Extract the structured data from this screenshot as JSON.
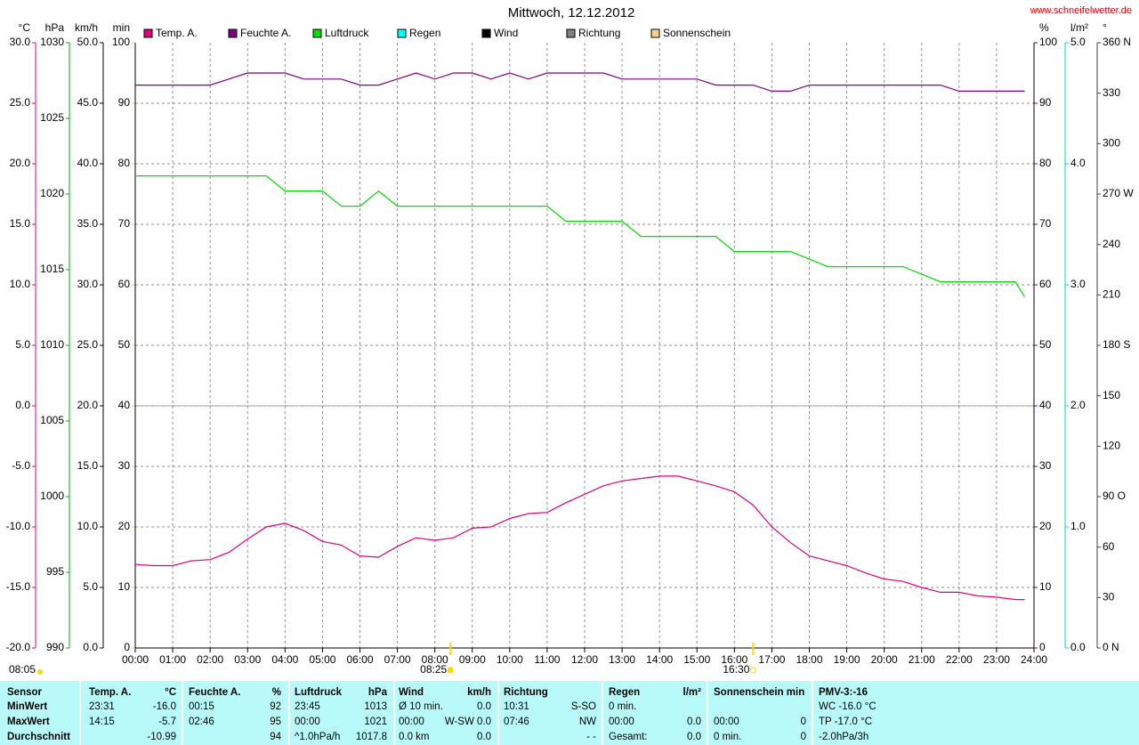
{
  "chart_data": {
    "type": "line",
    "title": "Mittwoch, 12.12.2012",
    "source": "www.schneifelwetter.de",
    "x": [
      0,
      0.5,
      1,
      1.5,
      2,
      2.5,
      3,
      3.5,
      4,
      4.5,
      5,
      5.5,
      6,
      6.5,
      7,
      7.5,
      8,
      8.5,
      9,
      9.5,
      10,
      10.5,
      11,
      11.5,
      12,
      12.5,
      13,
      13.5,
      14,
      14.5,
      15,
      15.5,
      16,
      16.5,
      17,
      17.5,
      18,
      18.5,
      19,
      19.5,
      20,
      20.5,
      21,
      21.5,
      22,
      22.5,
      23,
      23.5,
      23.75
    ],
    "xlim": [
      0,
      24
    ],
    "xticks": [
      {
        "value": 0,
        "label": "00:00"
      },
      {
        "value": 1,
        "label": "01:00"
      },
      {
        "value": 2,
        "label": "02:00"
      },
      {
        "value": 3,
        "label": "03:00"
      },
      {
        "value": 4,
        "label": "04:00"
      },
      {
        "value": 5,
        "label": "05:00"
      },
      {
        "value": 6,
        "label": "06:00"
      },
      {
        "value": 7,
        "label": "07:00"
      },
      {
        "value": 8,
        "label": "08:00"
      },
      {
        "value": 9,
        "label": "09:00"
      },
      {
        "value": 10,
        "label": "10:00"
      },
      {
        "value": 11,
        "label": "11:00"
      },
      {
        "value": 12,
        "label": "12:00"
      },
      {
        "value": 13,
        "label": "13:00"
      },
      {
        "value": 14,
        "label": "14:00"
      },
      {
        "value": 15,
        "label": "15:00"
      },
      {
        "value": 16,
        "label": "16:00"
      },
      {
        "value": 17,
        "label": "17:00"
      },
      {
        "value": 18,
        "label": "18:00"
      },
      {
        "value": 19,
        "label": "19:00"
      },
      {
        "value": 20,
        "label": "20:00"
      },
      {
        "value": 21,
        "label": "21:00"
      },
      {
        "value": 22,
        "label": "22:00"
      },
      {
        "value": 23,
        "label": "23:00"
      },
      {
        "value": 24,
        "label": "24:00"
      }
    ],
    "grid": true,
    "axes": [
      {
        "unit": "°C",
        "side": "left",
        "color": "#e0007f",
        "ylim": [
          -20,
          30
        ],
        "yticks": [
          {
            "value": -20,
            "label": "-20.0"
          },
          {
            "value": -15,
            "label": "-15.0"
          },
          {
            "value": -10,
            "label": "-10.0"
          },
          {
            "value": -5,
            "label": "-5.0"
          },
          {
            "value": 0,
            "label": "0.0"
          },
          {
            "value": 5,
            "label": "5.0"
          },
          {
            "value": 10,
            "label": "10.0"
          },
          {
            "value": 15,
            "label": "15.0"
          },
          {
            "value": 20,
            "label": "20.0"
          },
          {
            "value": 25,
            "label": "25.0"
          },
          {
            "value": 30,
            "label": "30.0"
          }
        ]
      },
      {
        "unit": "hPa",
        "side": "left",
        "color": "#00b000",
        "ylim": [
          990,
          1030
        ],
        "yticks": [
          990,
          995,
          1000,
          1005,
          1010,
          1015,
          1020,
          1025,
          1030
        ]
      },
      {
        "unit": "km/h",
        "side": "left",
        "color": "#000000",
        "ylim": [
          0,
          50
        ],
        "yticks": [
          {
            "value": 0,
            "label": "0.0"
          },
          {
            "value": 5,
            "label": "5.0"
          },
          {
            "value": 10,
            "label": "10.0"
          },
          {
            "value": 15,
            "label": "15.0"
          },
          {
            "value": 20,
            "label": "20.0"
          },
          {
            "value": 25,
            "label": "25.0"
          },
          {
            "value": 30,
            "label": "30.0"
          },
          {
            "value": 35,
            "label": "35.0"
          },
          {
            "value": 40,
            "label": "40.0"
          },
          {
            "value": 45,
            "label": "45.0"
          },
          {
            "value": 50,
            "label": "50.0"
          }
        ]
      },
      {
        "unit": "min",
        "side": "left",
        "color": "#f0c890",
        "ylim": [
          0,
          100
        ],
        "yticks": [
          0,
          10,
          20,
          30,
          40,
          50,
          60,
          70,
          80,
          90,
          100
        ]
      },
      {
        "unit": "%",
        "side": "right",
        "color": "#800080",
        "ylim": [
          0,
          100
        ],
        "yticks": [
          0,
          10,
          20,
          30,
          40,
          50,
          60,
          70,
          80,
          90,
          100
        ]
      },
      {
        "unit": "l/m²",
        "side": "right",
        "color": "#00d0d0",
        "ylim": [
          0,
          5
        ],
        "yticks": [
          {
            "value": 0,
            "label": "0.0"
          },
          {
            "value": 1,
            "label": "1.0"
          },
          {
            "value": 2,
            "label": "2.0"
          },
          {
            "value": 3,
            "label": "3.0"
          },
          {
            "value": 4,
            "label": "4.0"
          },
          {
            "value": 5,
            "label": "5.0"
          }
        ]
      },
      {
        "unit": "°",
        "side": "right",
        "color": "#404040",
        "ylim": [
          0,
          360
        ],
        "yticks": [
          {
            "value": 0,
            "label": "0 N"
          },
          30,
          60,
          {
            "value": 90,
            "label": "90 O"
          },
          120,
          150,
          {
            "value": 180,
            "label": "180 S"
          },
          210,
          240,
          {
            "value": 270,
            "label": "270 W"
          },
          300,
          330,
          {
            "value": 360,
            "label": "360 N"
          }
        ]
      }
    ],
    "series": [
      {
        "name": "Temp. A.",
        "color": "#e0007f",
        "axis": "°C",
        "values": [
          -13.1,
          -13.2,
          -13.2,
          -12.8,
          -12.7,
          -12.1,
          -11.0,
          -10.0,
          -9.7,
          -10.3,
          -11.2,
          -11.5,
          -12.4,
          -12.5,
          -11.6,
          -10.9,
          -11.1,
          -10.9,
          -10.1,
          -10.0,
          -9.3,
          -8.9,
          -8.8,
          -8.0,
          -7.3,
          -6.6,
          -6.2,
          -6.0,
          -5.8,
          -5.8,
          -6.2,
          -6.6,
          -7.1,
          -8.2,
          -10.0,
          -11.3,
          -12.4,
          -12.8,
          -13.2,
          -13.8,
          -14.3,
          -14.5,
          -15.0,
          -15.4,
          -15.4,
          -15.7,
          -15.8,
          -16.0,
          -16.0
        ]
      },
      {
        "name": "Feuchte A.",
        "color": "#800080",
        "axis": "%",
        "values": [
          93,
          93,
          93,
          93,
          93,
          94,
          95,
          95,
          95,
          94,
          94,
          94,
          93,
          93,
          94,
          95,
          94,
          95,
          95,
          94,
          95,
          94,
          95,
          95,
          95,
          95,
          94,
          94,
          94,
          94,
          94,
          93,
          93,
          93,
          92,
          92,
          93,
          93,
          93,
          93,
          93,
          93,
          93,
          93,
          92,
          92,
          92,
          92,
          92
        ]
      },
      {
        "name": "Luftdruck",
        "color": "#00e000",
        "axis": "hPa",
        "values": [
          1021.2,
          1021.2,
          1021.2,
          1021.2,
          1021.2,
          1021.2,
          1021.2,
          1021.2,
          1020.2,
          1020.2,
          1020.2,
          1019.2,
          1019.2,
          1020.2,
          1019.2,
          1019.2,
          1019.2,
          1019.2,
          1019.2,
          1019.2,
          1019.2,
          1019.2,
          1019.2,
          1018.2,
          1018.2,
          1018.2,
          1018.2,
          1017.2,
          1017.2,
          1017.2,
          1017.2,
          1017.2,
          1016.2,
          1016.2,
          1016.2,
          1016.2,
          1015.7,
          1015.2,
          1015.2,
          1015.2,
          1015.2,
          1015.2,
          1014.7,
          1014.2,
          1014.2,
          1014.2,
          1014.2,
          1014.2,
          1013.2
        ]
      },
      {
        "name": "Regen",
        "color": "#00ffff",
        "text_color": "#00d0d0"
      },
      {
        "name": "Wind",
        "color": "#000000"
      },
      {
        "name": "Richtung",
        "color": "#808080",
        "text_color": "#404040"
      },
      {
        "name": "Sonnenschein",
        "color": "#ffd090",
        "text_color": "#f0c890"
      }
    ],
    "sun": {
      "daylength": "08:05",
      "sunrise": "08:25",
      "sunset": "16:30"
    }
  },
  "table": {
    "header": [
      [
        "Sensor",
        null
      ],
      [
        "Temp. A.",
        "°C"
      ],
      [
        "Feuchte A.",
        "%"
      ],
      [
        "Luftdruck",
        "hPa"
      ],
      [
        "Wind",
        "km/h"
      ],
      [
        "Richtung",
        null
      ],
      [
        "Regen",
        "l/m²"
      ],
      [
        "Sonnenschein min",
        null
      ],
      [
        "PMV-3:-16",
        null
      ]
    ],
    "rows": [
      [
        [
          "MinWert",
          null
        ],
        [
          "23:31",
          "-16.0"
        ],
        [
          "00:15",
          "92"
        ],
        [
          "23:45",
          "1013"
        ],
        [
          "Ø 10 min.",
          "0.0"
        ],
        [
          "10:31",
          "S-SO"
        ],
        [
          "0 min.",
          null
        ],
        [
          null,
          null
        ],
        [
          "WC -16.0 °C",
          null
        ]
      ],
      [
        [
          "MaxWert",
          null
        ],
        [
          "14:15",
          "-5.7"
        ],
        [
          "02:46",
          "95"
        ],
        [
          "00:00",
          "1021"
        ],
        [
          "00:00",
          "W-SW 0.0"
        ],
        [
          "07:46",
          "NW"
        ],
        [
          "00:00",
          "0.0"
        ],
        [
          "00:00",
          "0"
        ],
        [
          "TP -17.0 °C",
          null
        ]
      ],
      [
        [
          "Durchschnitt",
          null
        ],
        [
          null,
          "-10.99"
        ],
        [
          null,
          "94"
        ],
        [
          "^1.0hPa/h",
          "1017.8"
        ],
        [
          "0.0 km",
          "0.0"
        ],
        [
          null,
          "- -"
        ],
        [
          "Gesamt:",
          "0.0"
        ],
        [
          "0 min.",
          "0"
        ],
        [
          "-2.0hPa/3h",
          null
        ]
      ]
    ]
  }
}
